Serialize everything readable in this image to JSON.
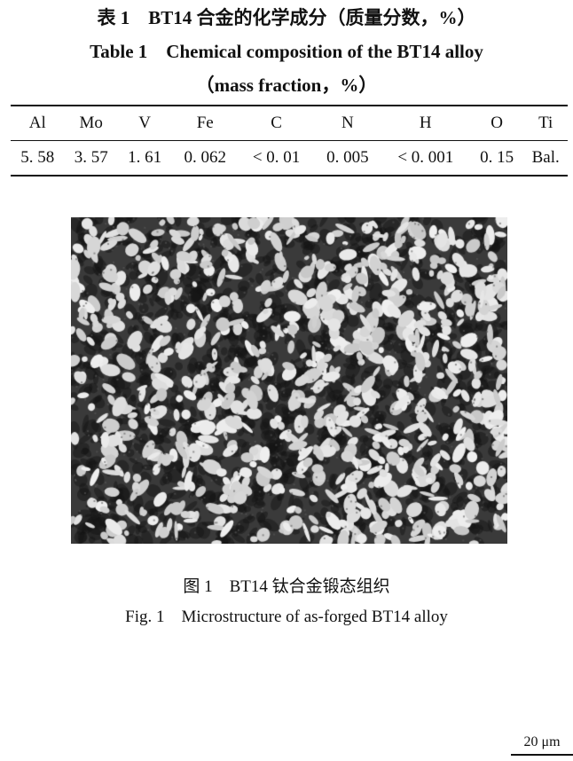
{
  "table": {
    "caption_cn": "表 1　BT14 合金的化学成分（质量分数，%）",
    "caption_en_line1": "Table 1　Chemical composition of the BT14 alloy",
    "caption_en_line2": "（mass fraction，%）",
    "headers": [
      "Al",
      "Mo",
      "V",
      "Fe",
      "C",
      "N",
      "H",
      "O",
      "Ti"
    ],
    "values": [
      "5. 58",
      "3. 57",
      "1. 61",
      "0. 062",
      "< 0. 01",
      "0. 005",
      "< 0. 001",
      "0. 15",
      "Bal."
    ]
  },
  "figure": {
    "scale_bar": "20 μm",
    "caption_cn": "图 1　BT14 钛合金锻态组织",
    "caption_en": "Fig. 1　Microstructure of as-forged BT14 alloy"
  }
}
